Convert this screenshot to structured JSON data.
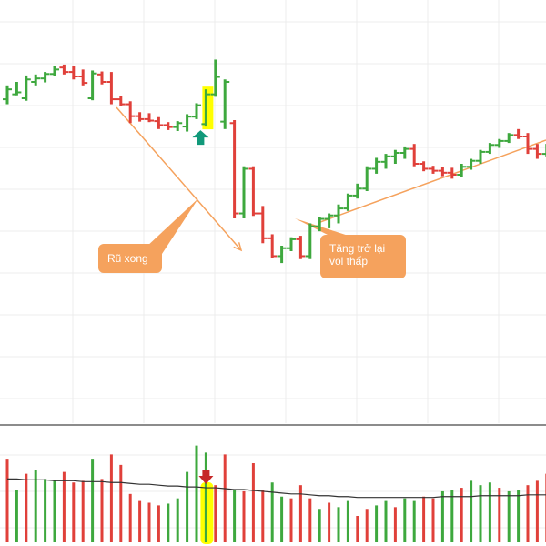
{
  "chart_data": [
    {
      "type": "ohlc",
      "panel": "price",
      "bars": [
        {
          "o": 90,
          "h": 118,
          "l": 80,
          "c": 110
        },
        {
          "o": 100,
          "h": 125,
          "l": 98,
          "c": 104
        },
        {
          "o": 92,
          "h": 138,
          "l": 87,
          "c": 130
        },
        {
          "o": 125,
          "h": 140,
          "l": 118,
          "c": 132
        },
        {
          "o": 132,
          "h": 145,
          "l": 124,
          "c": 141
        },
        {
          "o": 141,
          "h": 158,
          "l": 136,
          "c": 150
        },
        {
          "o": 154,
          "h": 160,
          "l": 140,
          "c": 145
        },
        {
          "o": 145,
          "h": 158,
          "l": 130,
          "c": 136
        },
        {
          "o": 136,
          "h": 150,
          "l": 118,
          "c": 123
        },
        {
          "o": 92,
          "h": 148,
          "l": 88,
          "c": 142
        },
        {
          "o": 140,
          "h": 146,
          "l": 120,
          "c": 125
        },
        {
          "o": 125,
          "h": 145,
          "l": 80,
          "c": 90
        },
        {
          "o": 90,
          "h": 96,
          "l": 76,
          "c": 80
        },
        {
          "o": 80,
          "h": 86,
          "l": 42,
          "c": 56
        },
        {
          "o": 56,
          "h": 64,
          "l": 45,
          "c": 50
        },
        {
          "o": 50,
          "h": 62,
          "l": 44,
          "c": 47
        },
        {
          "o": 46,
          "h": 54,
          "l": 30,
          "c": 38
        },
        {
          "o": 38,
          "h": 44,
          "l": 28,
          "c": 34
        },
        {
          "o": 34,
          "h": 46,
          "l": 26,
          "c": 42
        },
        {
          "o": 35,
          "h": 60,
          "l": 25,
          "c": 55
        },
        {
          "o": 55,
          "h": 82,
          "l": 50,
          "c": 78
        },
        {
          "o": 40,
          "h": 110,
          "l": 35,
          "c": 100
        },
        {
          "o": 100,
          "h": 170,
          "l": 95,
          "c": 135
        },
        {
          "o": 45,
          "h": 130,
          "l": 30,
          "c": 125
        },
        {
          "o": 42,
          "h": 48,
          "l": -150,
          "c": -140
        },
        {
          "o": -140,
          "h": -45,
          "l": -150,
          "c": -50
        },
        {
          "o": -50,
          "h": -45,
          "l": -145,
          "c": -140
        },
        {
          "o": -140,
          "h": -125,
          "l": -200,
          "c": -190
        },
        {
          "o": -190,
          "h": -182,
          "l": -230,
          "c": -226
        },
        {
          "o": -226,
          "h": -205,
          "l": -240,
          "c": -210
        },
        {
          "o": -210,
          "h": -188,
          "l": -216,
          "c": -192
        },
        {
          "o": -192,
          "h": -185,
          "l": -232,
          "c": -226
        },
        {
          "o": -226,
          "h": -160,
          "l": -232,
          "c": -166
        },
        {
          "o": -166,
          "h": -148,
          "l": -176,
          "c": -151
        },
        {
          "o": -151,
          "h": -140,
          "l": -170,
          "c": -144
        },
        {
          "o": -144,
          "h": -122,
          "l": -160,
          "c": -130
        },
        {
          "o": -130,
          "h": -100,
          "l": -135,
          "c": -104
        },
        {
          "o": -104,
          "h": -80,
          "l": -110,
          "c": -90
        },
        {
          "o": -90,
          "h": -45,
          "l": -95,
          "c": -50
        },
        {
          "o": -50,
          "h": -28,
          "l": -60,
          "c": -36
        },
        {
          "o": -36,
          "h": -20,
          "l": -50,
          "c": -25
        },
        {
          "o": -25,
          "h": -12,
          "l": -40,
          "c": -18
        },
        {
          "o": -18,
          "h": -5,
          "l": -30,
          "c": -10
        },
        {
          "o": -10,
          "h": 0,
          "l": -45,
          "c": -40
        },
        {
          "o": -40,
          "h": -35,
          "l": -55,
          "c": -50
        },
        {
          "o": -50,
          "h": -44,
          "l": -60,
          "c": -54
        },
        {
          "o": -54,
          "h": -46,
          "l": -65,
          "c": -58
        },
        {
          "o": -58,
          "h": -48,
          "l": -70,
          "c": -62
        },
        {
          "o": -62,
          "h": -40,
          "l": -66,
          "c": -46
        },
        {
          "o": -46,
          "h": -30,
          "l": -52,
          "c": -34
        },
        {
          "o": -34,
          "h": -12,
          "l": -40,
          "c": -16
        },
        {
          "o": -16,
          "h": 2,
          "l": -20,
          "c": -2
        },
        {
          "o": -2,
          "h": 10,
          "l": -8,
          "c": 6
        },
        {
          "o": 6,
          "h": 22,
          "l": 2,
          "c": 18
        },
        {
          "o": 18,
          "h": 30,
          "l": 10,
          "c": 15
        },
        {
          "o": 15,
          "h": 22,
          "l": -20,
          "c": -10
        },
        {
          "o": -10,
          "h": 0,
          "l": -30,
          "c": -20
        },
        {
          "o": -20,
          "h": 0,
          "l": -25,
          "c": -5
        }
      ],
      "colors": {
        "up": "#3ea83e",
        "down": "#e0403a"
      },
      "highlight_bar": 21,
      "highlight_color": "#ffff00",
      "arrow_bar": 21,
      "arrow_color": "#11997a",
      "annotation_color": "#f5a25d",
      "grid": true
    },
    {
      "type": "bar",
      "panel": "volume",
      "values": [
        95,
        60,
        78,
        82,
        72,
        70,
        80,
        68,
        70,
        95,
        72,
        100,
        88,
        55,
        48,
        45,
        42,
        44,
        50,
        80,
        110,
        102,
        65,
        100,
        60,
        58,
        90,
        60,
        68,
        52,
        50,
        65,
        50,
        38,
        45,
        40,
        48,
        30,
        38,
        42,
        48,
        40,
        50,
        48,
        52,
        50,
        58,
        60,
        62,
        70,
        65,
        68,
        62,
        58,
        60,
        65,
        70,
        78
      ],
      "directions": [
        "down",
        "up",
        "down",
        "up",
        "up",
        "up",
        "down",
        "down",
        "down",
        "up",
        "down",
        "down",
        "down",
        "down",
        "down",
        "down",
        "down",
        "up",
        "up",
        "up",
        "up",
        "up",
        "down",
        "down",
        "up",
        "down",
        "down",
        "down",
        "up",
        "up",
        "down",
        "down",
        "down",
        "up",
        "down",
        "up",
        "up",
        "down",
        "down",
        "up",
        "up",
        "down",
        "up",
        "up",
        "down",
        "down",
        "up",
        "up",
        "down",
        "up",
        "up",
        "up",
        "down",
        "up",
        "up",
        "down",
        "down",
        "down"
      ],
      "moving_average": [
        72,
        72,
        71,
        71,
        71,
        70,
        70,
        70,
        69,
        69,
        69,
        68,
        68,
        67,
        66,
        66,
        65,
        64,
        64,
        63,
        63,
        62,
        62,
        61,
        60,
        60,
        59,
        58,
        57,
        56,
        55,
        55,
        54,
        53,
        53,
        52,
        52,
        51,
        51,
        51,
        51,
        51,
        51,
        51,
        51,
        51,
        52,
        52,
        52,
        52,
        53,
        53,
        53,
        53,
        53,
        54,
        54,
        54
      ],
      "ma_color": "#333333",
      "highlight_bar": 21,
      "arrow_bar": 21,
      "arrow_color": "#c62828"
    }
  ],
  "annotations": {
    "left_label": "Rũ xong",
    "right_label_line1": "Tăng trở lại",
    "right_label_line2": "vol thấp"
  }
}
